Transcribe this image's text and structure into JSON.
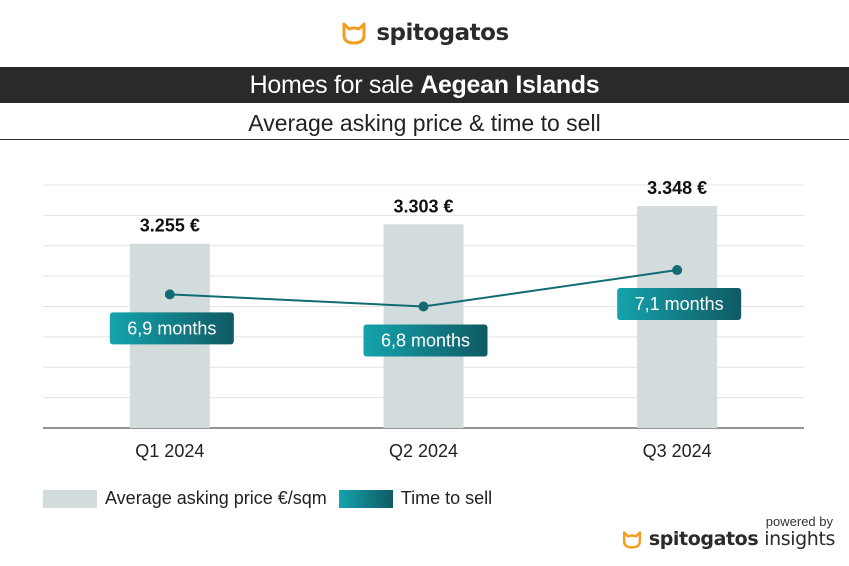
{
  "brand": {
    "logo_icon": "cat-head-icon",
    "name": "spitogatos",
    "accent": "#f39c1f"
  },
  "header": {
    "title_prefix": "Homes for sale",
    "title_region": "Aegean Islands",
    "subtitle": "Average asking price & time to sell"
  },
  "chart_data": {
    "type": "bar",
    "categories": [
      "Q1 2024",
      "Q2 2024",
      "Q3 2024"
    ],
    "series": [
      {
        "name": "Average asking price €/sqm",
        "type": "bar",
        "values": [
          3255,
          3303,
          3348
        ],
        "labels": [
          "3.255 €",
          "3.303 €",
          "3.348 €"
        ],
        "color": "#d3dcdc"
      },
      {
        "name": "Time to sell",
        "type": "line",
        "values": [
          6.9,
          6.8,
          7.1
        ],
        "labels": [
          "6,9 months",
          "6,8 months",
          "7,1 months"
        ],
        "color": "#116b73"
      }
    ],
    "bar_axis_range": [
      2800,
      3400
    ],
    "line_axis_range": [
      5.8,
      7.8
    ],
    "grid": true,
    "legend": "bottom-left"
  },
  "footer": {
    "powered_by": "powered by",
    "brand_bold": "spitogatos",
    "brand_light": "insights"
  }
}
